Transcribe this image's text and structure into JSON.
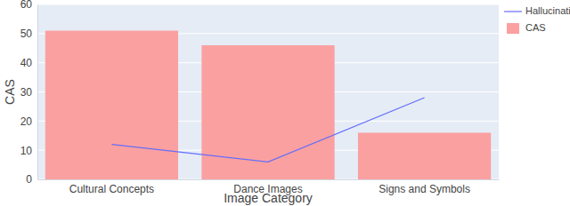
{
  "chart_data": {
    "type": "bar",
    "categories": [
      "Cultural Concepts",
      "Dance Images",
      "Signs and Symbols"
    ],
    "series": [
      {
        "name": "Hallucinations",
        "type": "line",
        "color": "#636efa",
        "values": [
          12,
          6,
          28
        ]
      },
      {
        "name": "CAS",
        "type": "bar",
        "color": "#fba0a0",
        "values": [
          51,
          46,
          16
        ]
      }
    ],
    "x_label": "Image Category",
    "y_label": "CAS",
    "ylim": [
      0,
      60
    ],
    "yticks": [
      0,
      10,
      20,
      30,
      40,
      50,
      60
    ],
    "grid": true,
    "legend": "top right"
  }
}
